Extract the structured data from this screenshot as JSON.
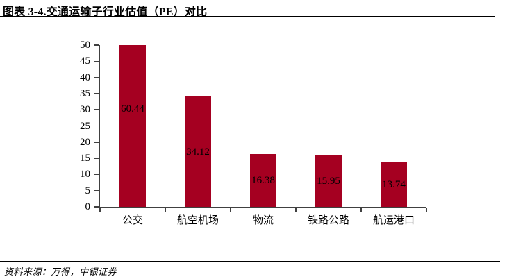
{
  "figure": {
    "title": "图表 3-4.交通运输子行业估值（PE）对比",
    "source_note": "资料来源：万得，中银证券"
  },
  "chart_data": {
    "type": "bar",
    "title": "图表 3-4.交通运输子行业估值（PE）对比",
    "categories": [
      "公交",
      "航空机场",
      "物流",
      "铁路公路",
      "航运港口"
    ],
    "values": [
      60.44,
      34.12,
      16.38,
      15.95,
      13.74
    ],
    "data_labels": [
      "60.44",
      "34.12",
      "16.38",
      "15.95",
      "13.74"
    ],
    "xlabel": "",
    "ylabel": "",
    "ylim": [
      0,
      50
    ],
    "yticks": [
      0,
      5,
      10,
      15,
      20,
      25,
      30,
      35,
      40,
      45,
      50
    ],
    "grid": false,
    "legend": "none",
    "bar_color": "#A50021",
    "label_color": "#000000",
    "axis_color": "#404040",
    "clip_bars_to_ylim": true,
    "data_label_position": "center-of-value"
  }
}
